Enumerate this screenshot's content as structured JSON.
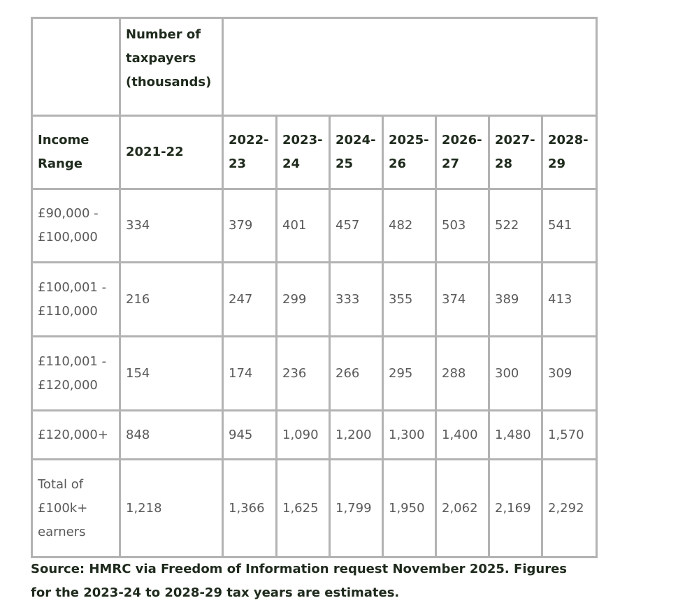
{
  "table": {
    "group_header": "Number of taxpayers (thousands)",
    "columns": [
      "Income Range",
      "2021-22",
      "2022-23",
      "2023-24",
      "2024-25",
      "2025-26",
      "2026-27",
      "2027-28",
      "2028-29"
    ],
    "rows": [
      [
        "£90,000 - £100,000",
        "334",
        "379",
        "401",
        "457",
        "482",
        "503",
        "522",
        "541"
      ],
      [
        "£100,001 - £110,000",
        "216",
        "247",
        "299",
        "333",
        "355",
        "374",
        "389",
        "413"
      ],
      [
        "£110,001 - £120,000",
        "154",
        "174",
        "236",
        "266",
        "295",
        "288",
        "300",
        "309"
      ],
      [
        "£120,000+",
        "848",
        "945",
        "1,090",
        "1,200",
        "1,300",
        "1,400",
        "1,480",
        "1,570"
      ],
      [
        "Total of £100k+ earners",
        "1,218",
        "1,366",
        "1,625",
        "1,799",
        "1,950",
        "2,062",
        "2,169",
        "2,292"
      ]
    ]
  },
  "source": "Source: HMRC via Freedom of Information request November 2025. Figures for the 2023-24 to 2028-29 tax years are estimates."
}
